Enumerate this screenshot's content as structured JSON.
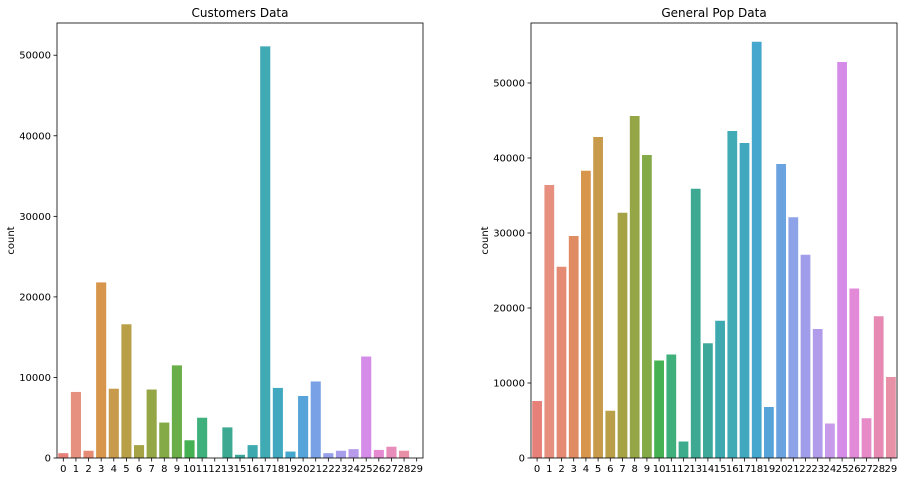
{
  "chart_data": [
    {
      "type": "bar",
      "title": "Customers Data",
      "xlabel": "",
      "ylabel": "count",
      "ylim": [
        0,
        54000
      ],
      "yticks": [
        0,
        10000,
        20000,
        30000,
        40000,
        50000
      ],
      "grid": false,
      "categories": [
        "0",
        "1",
        "2",
        "3",
        "4",
        "5",
        "6",
        "7",
        "8",
        "9",
        "10",
        "11",
        "12",
        "13",
        "15",
        "16",
        "17",
        "18",
        "19",
        "20",
        "21",
        "22",
        "23",
        "24",
        "25",
        "26",
        "27",
        "28",
        "29"
      ],
      "values": [
        600,
        8200,
        900,
        21800,
        8600,
        16600,
        1600,
        8500,
        4400,
        11500,
        2200,
        5000,
        0,
        3800,
        400,
        1600,
        51100,
        8700,
        800,
        7700,
        9500,
        600,
        900,
        1100,
        12600,
        1000,
        1400,
        900,
        0
      ],
      "colors": [
        "#e8807a",
        "#e69080",
        "#e58a73",
        "#d8954c",
        "#c89a4c",
        "#b89f48",
        "#a6a347",
        "#95a647",
        "#84aa48",
        "#6aae4a",
        "#45b152",
        "#3fb07b",
        "#3dac8d",
        "#3da992",
        "#3ea99b",
        "#3eaab0",
        "#40aab5",
        "#42a8c0",
        "#45a6ce",
        "#55a3d8",
        "#79a2e6",
        "#96a0ea",
        "#a69deb",
        "#b79bea",
        "#d58ce8",
        "#e68ad2",
        "#e88cb9",
        "#e890a6",
        "#e593a0"
      ]
    },
    {
      "type": "bar",
      "title": "General Pop Data",
      "xlabel": "",
      "ylabel": "count",
      "ylim": [
        0,
        58000
      ],
      "yticks": [
        0,
        10000,
        20000,
        30000,
        40000,
        50000
      ],
      "grid": false,
      "categories": [
        "0",
        "1",
        "2",
        "3",
        "4",
        "5",
        "6",
        "7",
        "8",
        "9",
        "10",
        "11",
        "12",
        "13",
        "14",
        "15",
        "16",
        "17",
        "18",
        "19",
        "20",
        "21",
        "22",
        "23",
        "24",
        "25",
        "26",
        "27",
        "28",
        "29"
      ],
      "values": [
        7600,
        36400,
        25500,
        29600,
        38300,
        42800,
        6300,
        32700,
        45600,
        40400,
        13000,
        13800,
        2200,
        35900,
        15300,
        18300,
        43600,
        42000,
        55500,
        6800,
        39200,
        32100,
        27100,
        17200,
        4600,
        52800,
        22600,
        5300,
        18900,
        10800
      ],
      "colors": [
        "#e8807a",
        "#e89080",
        "#e58a73",
        "#e08c63",
        "#d8954c",
        "#c89a4c",
        "#b89f48",
        "#a6a347",
        "#95a647",
        "#84aa48",
        "#45b152",
        "#3fb07b",
        "#3dac8d",
        "#3da992",
        "#3ea99b",
        "#3eaab0",
        "#40aab5",
        "#42a8c0",
        "#45a6ce",
        "#55a3d8",
        "#6aa3e0",
        "#8ea2e8",
        "#a09eeb",
        "#b09cea",
        "#c89aea",
        "#d58ce8",
        "#e28ad8",
        "#e68ac8",
        "#e68ab4",
        "#e890a6"
      ]
    }
  ]
}
